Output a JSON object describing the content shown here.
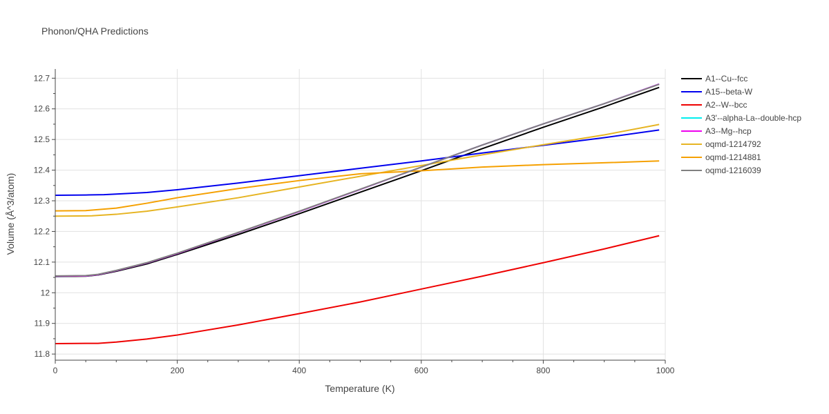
{
  "chart_data": {
    "type": "line",
    "title": "Phonon/QHA Predictions",
    "xlabel": "Temperature (K)",
    "ylabel": "Volume (Å^3/atom)",
    "xlim": [
      0,
      1000
    ],
    "ylim": [
      11.78,
      12.73
    ],
    "x_ticks": [
      0,
      200,
      400,
      600,
      800,
      1000
    ],
    "y_ticks": [
      11.8,
      11.9,
      12,
      12.1,
      12.2,
      12.3,
      12.4,
      12.5,
      12.6,
      12.7
    ],
    "x_tick_labels": [
      "0",
      "200",
      "400",
      "600",
      "800",
      "1000"
    ],
    "y_tick_labels": [
      "11.8",
      "11.9",
      "12",
      "12.1",
      "12.2",
      "12.3",
      "12.4",
      "12.5",
      "12.6",
      "12.7"
    ],
    "grid": true,
    "legend_position": "right",
    "series": [
      {
        "name": "A1--Cu--fcc",
        "color": "#000000",
        "x": [
          0,
          50,
          70,
          100,
          150,
          200,
          300,
          400,
          500,
          600,
          700,
          800,
          900,
          990
        ],
        "y": [
          12.053,
          12.054,
          12.058,
          12.07,
          12.094,
          12.125,
          12.19,
          12.258,
          12.328,
          12.398,
          12.47,
          12.54,
          12.607,
          12.67
        ]
      },
      {
        "name": "A15--beta-W",
        "color": "#0000ee",
        "x": [
          0,
          50,
          80,
          100,
          150,
          200,
          300,
          400,
          500,
          600,
          700,
          800,
          900,
          990
        ],
        "y": [
          12.318,
          12.319,
          12.32,
          12.322,
          12.327,
          12.336,
          12.358,
          12.382,
          12.406,
          12.43,
          12.456,
          12.481,
          12.506,
          12.531
        ]
      },
      {
        "name": "A2--W--bcc",
        "color": "#ee0000",
        "x": [
          0,
          50,
          70,
          100,
          150,
          200,
          300,
          400,
          500,
          600,
          700,
          800,
          900,
          990
        ],
        "y": [
          11.834,
          11.835,
          11.835,
          11.839,
          11.849,
          11.862,
          11.895,
          11.932,
          11.97,
          12.012,
          12.054,
          12.098,
          12.143,
          12.186
        ]
      },
      {
        "name": "A3'--alpha-La--double-hcp",
        "color": "#00eeee",
        "x": [
          0,
          50,
          70,
          100,
          150,
          200,
          300,
          400,
          500,
          600,
          700,
          800,
          900,
          990
        ],
        "y": [
          12.054,
          12.055,
          12.059,
          12.072,
          12.097,
          12.128,
          12.196,
          12.265,
          12.337,
          12.41,
          12.482,
          12.551,
          12.617,
          12.681
        ]
      },
      {
        "name": "A3--Mg--hcp",
        "color": "#ee00ee",
        "x": [
          0,
          50,
          70,
          100,
          150,
          200,
          300,
          400,
          500,
          600,
          700,
          800,
          900,
          990
        ],
        "y": [
          12.054,
          12.055,
          12.059,
          12.072,
          12.097,
          12.128,
          12.196,
          12.265,
          12.337,
          12.41,
          12.482,
          12.551,
          12.617,
          12.681
        ]
      },
      {
        "name": "oqmd-1214792",
        "color": "#e6b422",
        "x": [
          0,
          60,
          100,
          150,
          200,
          300,
          400,
          500,
          600,
          700,
          800,
          900,
          990
        ],
        "y": [
          12.25,
          12.251,
          12.256,
          12.266,
          12.28,
          12.31,
          12.345,
          12.38,
          12.415,
          12.45,
          12.483,
          12.515,
          12.549
        ]
      },
      {
        "name": "oqmd-1214881",
        "color": "#f5a000",
        "x": [
          0,
          50,
          100,
          150,
          200,
          300,
          400,
          500,
          600,
          700,
          800,
          900,
          990
        ],
        "y": [
          12.267,
          12.268,
          12.276,
          12.292,
          12.31,
          12.34,
          12.366,
          12.388,
          12.398,
          12.41,
          12.418,
          12.424,
          12.43
        ]
      },
      {
        "name": "oqmd-1216039",
        "color": "#808080",
        "x": [
          0,
          50,
          70,
          100,
          150,
          200,
          300,
          400,
          500,
          600,
          700,
          800,
          900,
          990
        ],
        "y": [
          12.055,
          12.056,
          12.06,
          12.073,
          12.098,
          12.129,
          12.197,
          12.266,
          12.338,
          12.41,
          12.482,
          12.551,
          12.617,
          12.68
        ]
      }
    ]
  }
}
